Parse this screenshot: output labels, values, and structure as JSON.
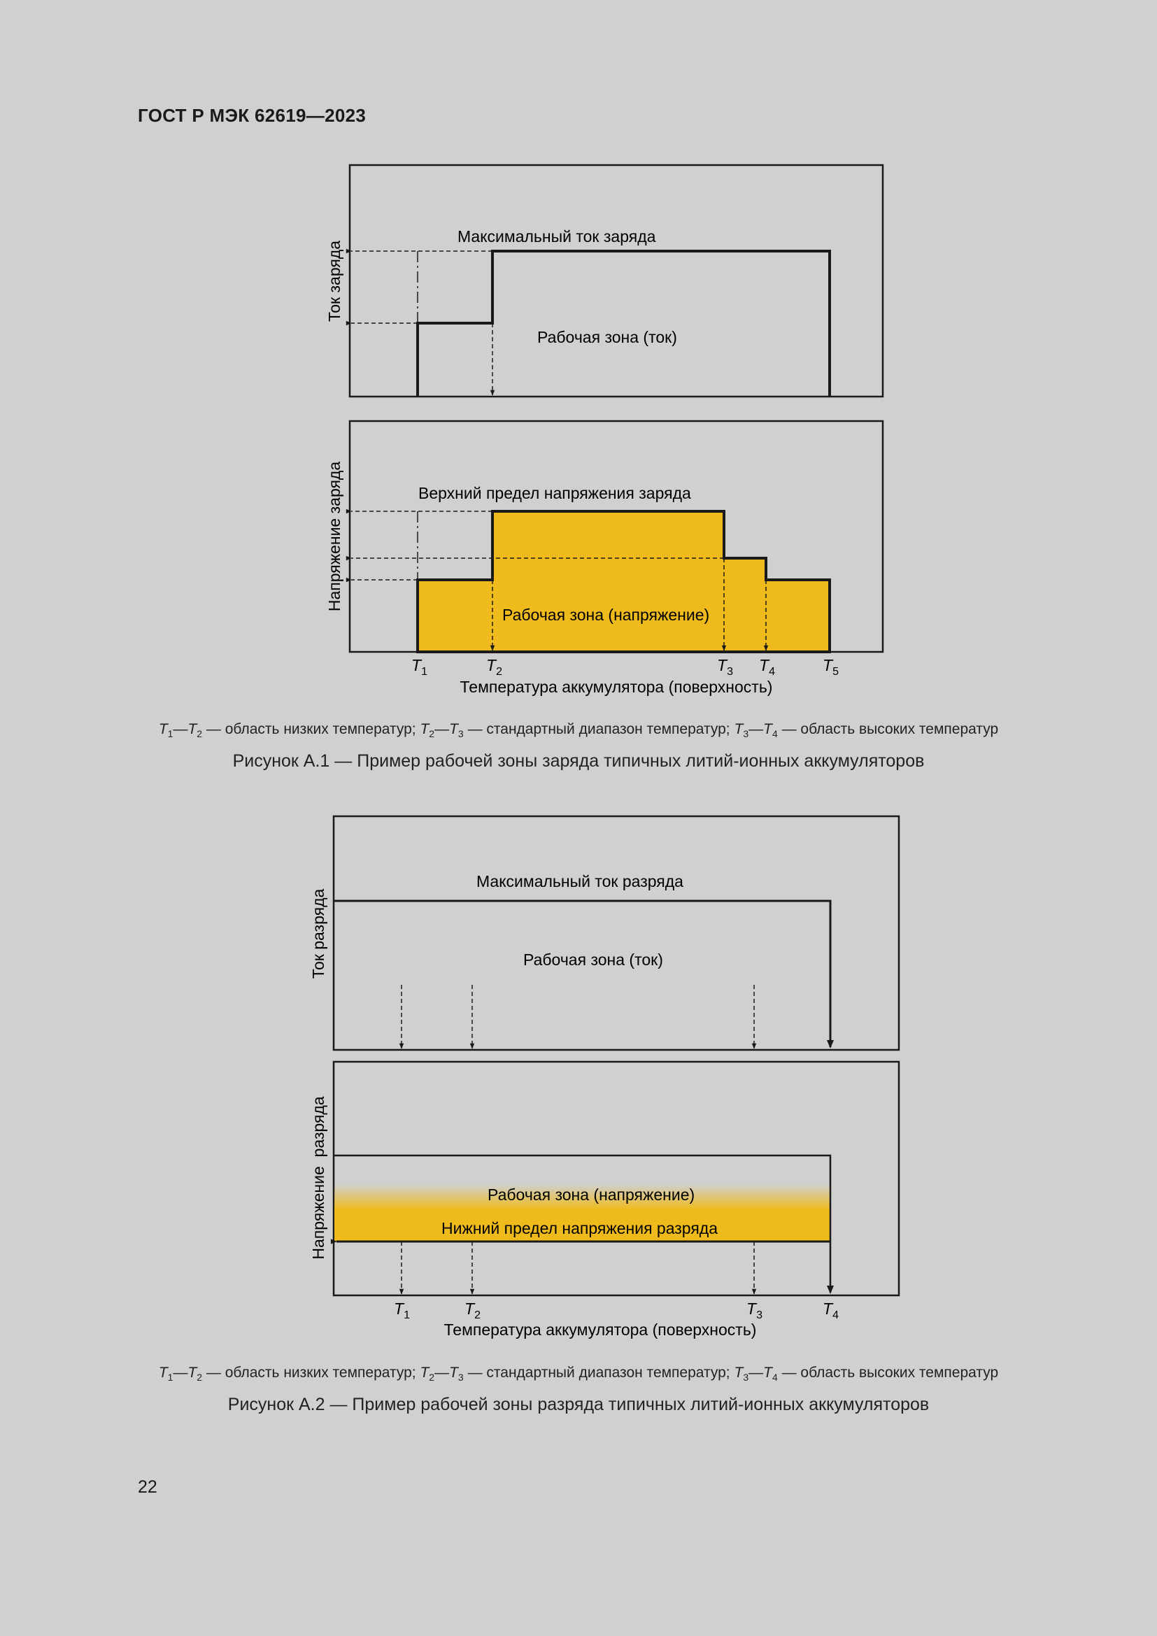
{
  "header": {
    "title": "ГОСТ Р МЭК 62619—2023"
  },
  "colors": {
    "zone_fill": "#efbb1c",
    "line": "#1a1a1a",
    "background": "#d0d0ce"
  },
  "figure1": {
    "current_panel": {
      "ylabel": "Ток заряда",
      "max_label": "Максимальный ток заряда",
      "zone_label": "Рабочая зона (ток)"
    },
    "voltage_panel": {
      "ylabel": "Напряжение заряда",
      "upper_label": "Верхний предел напряжения заряда",
      "zone_label": "Рабочая зона (напряжение)"
    },
    "xlabel": "Температура аккумулятора (поверхность)",
    "t_labels": [
      {
        "letter": "T",
        "sub": "1"
      },
      {
        "letter": "T",
        "sub": "2"
      },
      {
        "letter": "T",
        "sub": "3"
      },
      {
        "letter": "T",
        "sub": "4"
      },
      {
        "letter": "T",
        "sub": "5"
      }
    ],
    "legend": {
      "range1": "— область низких температур;",
      "range2": "— стандартный диапазон температур;",
      "range3": "— область высоких температур"
    },
    "caption": "Рисунок А.1 — Пример рабочей зоны заряда типичных литий-ионных аккумуляторов"
  },
  "figure2": {
    "current_panel": {
      "ylabel": "Ток разряда",
      "max_label": "Максимальный ток разряда",
      "zone_label": "Рабочая зона (ток)"
    },
    "voltage_panel": {
      "ylabel": "Напряжение  разряда",
      "zone_label": "Рабочая зона (напряжение)",
      "lower_label": "Нижний предел напряжения разряда"
    },
    "xlabel": "Температура аккумулятора (поверхность)",
    "t_labels": [
      {
        "letter": "T",
        "sub": "1"
      },
      {
        "letter": "T",
        "sub": "2"
      },
      {
        "letter": "T",
        "sub": "3"
      },
      {
        "letter": "T",
        "sub": "4"
      }
    ],
    "legend": {
      "range1": "— область низких температур;",
      "range2": "— стандартный диапазон температур;",
      "range3": "— область высоких температур"
    },
    "caption": "Рисунок А.2 — Пример рабочей зоны разряда типичных литий-ионных аккумуляторов"
  },
  "page": {
    "number": "22"
  }
}
